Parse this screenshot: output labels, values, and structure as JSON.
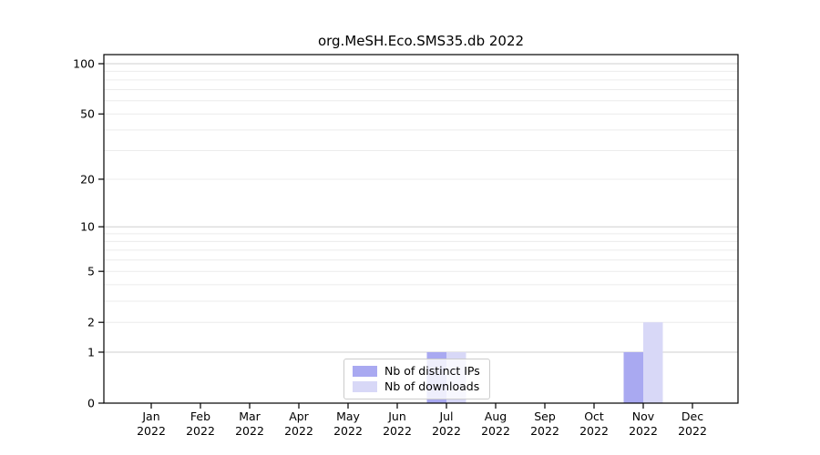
{
  "title": "org.MeSH.Eco.SMS35.db 2022",
  "legend": {
    "items": [
      {
        "label": "Nb of distinct IPs",
        "color": "#a9a9f1"
      },
      {
        "label": "Nb of downloads",
        "color": "#d8d8f7"
      }
    ]
  },
  "chart_data": {
    "type": "bar",
    "title": "org.MeSH.Eco.SMS35.db 2022",
    "categories": [
      "Jan",
      "Feb",
      "Mar",
      "Apr",
      "May",
      "Jun",
      "Jul",
      "Aug",
      "Sep",
      "Oct",
      "Nov",
      "Dec"
    ],
    "year": "2022",
    "series": [
      {
        "name": "Nb of distinct IPs",
        "color": "#a9a9f1",
        "values": [
          0,
          0,
          0,
          0,
          0,
          0,
          1,
          0,
          0,
          0,
          1,
          0
        ]
      },
      {
        "name": "Nb of downloads",
        "color": "#d8d8f7",
        "values": [
          0,
          0,
          0,
          0,
          0,
          0,
          1,
          0,
          0,
          0,
          2,
          0
        ]
      }
    ],
    "y_ticks": [
      0,
      1,
      2,
      5,
      10,
      20,
      50,
      100
    ],
    "ylim": [
      0,
      100
    ],
    "y_scale": "log10(1+v)",
    "grid": "horizontal",
    "legend_position": "lower center inside",
    "colors": {
      "axis": "#000000",
      "grid_minor": "#ececec",
      "grid_major": "#cfcfcf"
    }
  }
}
